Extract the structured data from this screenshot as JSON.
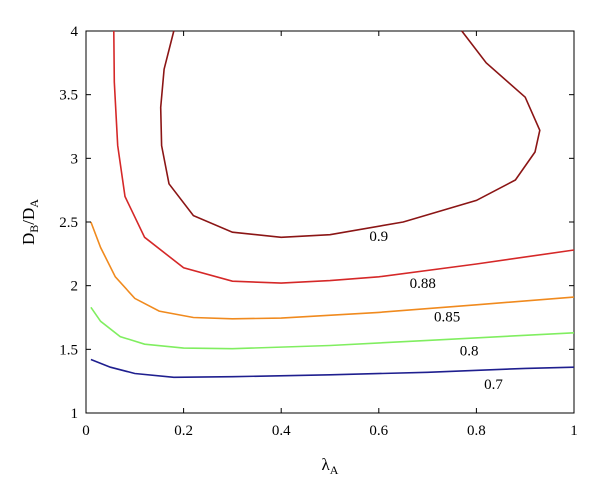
{
  "chart_data": {
    "type": "line",
    "subtype": "contour",
    "xlabel": "λA",
    "ylabel": "DB/DA",
    "xlim": [
      0,
      1
    ],
    "ylim": [
      1,
      4
    ],
    "x_ticks": [
      "0",
      "0.2",
      "0.4",
      "0.6",
      "0.8",
      "1"
    ],
    "y_ticks": [
      "1",
      "1.5",
      "2",
      "2.5",
      "3",
      "3.5",
      "4"
    ],
    "grid": false,
    "series": [
      {
        "name": "0.7",
        "color": "#1f1f8f",
        "points": [
          [
            0.01,
            1.42
          ],
          [
            0.05,
            1.36
          ],
          [
            0.1,
            1.31
          ],
          [
            0.18,
            1.28
          ],
          [
            0.3,
            1.285
          ],
          [
            0.5,
            1.3
          ],
          [
            0.7,
            1.32
          ],
          [
            0.9,
            1.35
          ],
          [
            1.0,
            1.36
          ]
        ]
      },
      {
        "name": "0.8",
        "color": "#80ee60",
        "points": [
          [
            0.01,
            1.83
          ],
          [
            0.03,
            1.72
          ],
          [
            0.07,
            1.6
          ],
          [
            0.12,
            1.54
          ],
          [
            0.2,
            1.51
          ],
          [
            0.3,
            1.505
          ],
          [
            0.5,
            1.53
          ],
          [
            0.7,
            1.57
          ],
          [
            0.9,
            1.61
          ],
          [
            1.0,
            1.63
          ]
        ]
      },
      {
        "name": "0.85",
        "color": "#f08a1e",
        "points": [
          [
            0.01,
            2.5
          ],
          [
            0.03,
            2.3
          ],
          [
            0.06,
            2.07
          ],
          [
            0.1,
            1.9
          ],
          [
            0.15,
            1.8
          ],
          [
            0.22,
            1.75
          ],
          [
            0.3,
            1.74
          ],
          [
            0.4,
            1.745
          ],
          [
            0.6,
            1.79
          ],
          [
            0.8,
            1.85
          ],
          [
            1.0,
            1.91
          ]
        ]
      },
      {
        "name": "0.88",
        "color": "#d52828",
        "points": [
          [
            0.057,
            4.0
          ],
          [
            0.058,
            3.6
          ],
          [
            0.065,
            3.1
          ],
          [
            0.08,
            2.7
          ],
          [
            0.12,
            2.38
          ],
          [
            0.2,
            2.14
          ],
          [
            0.3,
            2.035
          ],
          [
            0.4,
            2.02
          ],
          [
            0.5,
            2.04
          ],
          [
            0.6,
            2.07
          ],
          [
            0.8,
            2.17
          ],
          [
            1.0,
            2.28
          ]
        ]
      },
      {
        "name": "0.9",
        "color": "#8b1515",
        "points": [
          [
            0.18,
            4.0
          ],
          [
            0.16,
            3.7
          ],
          [
            0.153,
            3.4
          ],
          [
            0.155,
            3.1
          ],
          [
            0.17,
            2.8
          ],
          [
            0.22,
            2.55
          ],
          [
            0.3,
            2.42
          ],
          [
            0.4,
            2.38
          ],
          [
            0.5,
            2.4
          ],
          [
            0.65,
            2.5
          ],
          [
            0.8,
            2.67
          ],
          [
            0.88,
            2.83
          ],
          [
            0.92,
            3.05
          ],
          [
            0.93,
            3.22
          ],
          [
            0.9,
            3.48
          ],
          [
            0.82,
            3.75
          ],
          [
            0.77,
            4.0
          ]
        ]
      }
    ],
    "annotations": [
      {
        "text": "0.9",
        "x": 0.6,
        "y": 2.35
      },
      {
        "text": "0.88",
        "x": 0.69,
        "y": 1.98
      },
      {
        "text": "0.85",
        "x": 0.74,
        "y": 1.72
      },
      {
        "text": "0.8",
        "x": 0.785,
        "y": 1.45
      },
      {
        "text": "0.7",
        "x": 0.835,
        "y": 1.19
      }
    ]
  }
}
